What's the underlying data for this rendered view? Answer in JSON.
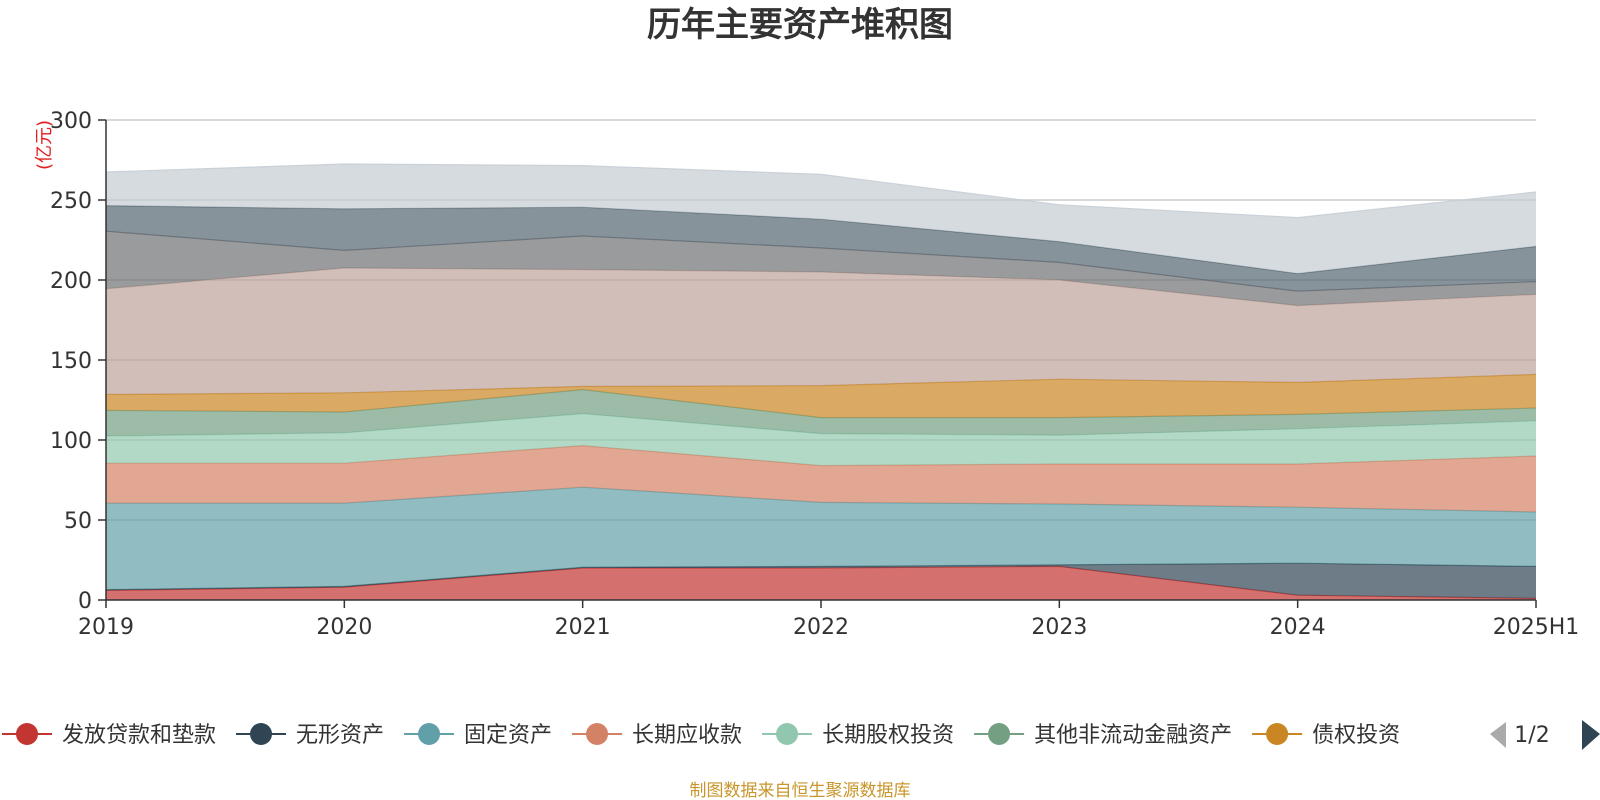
{
  "chart_data": {
    "type": "area",
    "stacked": true,
    "title": "历年主要资产堆积图",
    "unit_label": "(亿元)",
    "categories": [
      "2019",
      "2020",
      "2021",
      "2022",
      "2023",
      "2024",
      "2025H1"
    ],
    "ylim": [
      0,
      300
    ],
    "yticks": [
      0,
      50,
      100,
      150,
      200,
      250,
      300
    ],
    "grid": true,
    "legend_position": "bottom",
    "legend_page": "1/2",
    "series": [
      {
        "name": "发放贷款和垫款",
        "color": "#c23531",
        "values": [
          6,
          8,
          20,
          20,
          21,
          3,
          1
        ],
        "legend": true
      },
      {
        "name": "无形资产",
        "color": "#2f4554",
        "values": [
          0.5,
          0.5,
          0.5,
          1,
          1,
          20,
          20
        ],
        "legend": true
      },
      {
        "name": "固定资产",
        "color": "#61a0a8",
        "values": [
          54,
          52,
          50,
          40,
          38,
          35,
          34
        ],
        "legend": true
      },
      {
        "name": "长期应收款",
        "color": "#d48265",
        "values": [
          25,
          25,
          26,
          23,
          25,
          27,
          35
        ],
        "legend": true
      },
      {
        "name": "长期股权投资",
        "color": "#91c7ae",
        "values": [
          17,
          19,
          20,
          20,
          18,
          22,
          22
        ],
        "legend": true
      },
      {
        "name": "其他非流动金融资产",
        "color": "#749f83",
        "values": [
          16,
          13,
          15,
          10,
          11,
          9,
          8
        ],
        "legend": true
      },
      {
        "name": "债权投资",
        "color": "#ca8622",
        "values": [
          10,
          12,
          2,
          20,
          24,
          20,
          21
        ],
        "legend": true
      },
      {
        "name": "",
        "color": "#bda29a",
        "values": [
          66,
          78,
          73,
          71,
          62,
          48,
          50
        ],
        "legend": false
      },
      {
        "name": "",
        "color": "#6e7074",
        "values": [
          36,
          11,
          21,
          15,
          11,
          9,
          8
        ],
        "legend": false
      },
      {
        "name": "",
        "color": "#546570",
        "values": [
          16,
          26,
          18,
          18,
          13,
          11,
          22
        ],
        "legend": false
      },
      {
        "name": "",
        "color": "#c4ccd3",
        "values": [
          21,
          28,
          26,
          28,
          23,
          35,
          34
        ],
        "legend": false
      }
    ]
  },
  "footer": {
    "source": "制图数据来自恒生聚源数据库"
  }
}
